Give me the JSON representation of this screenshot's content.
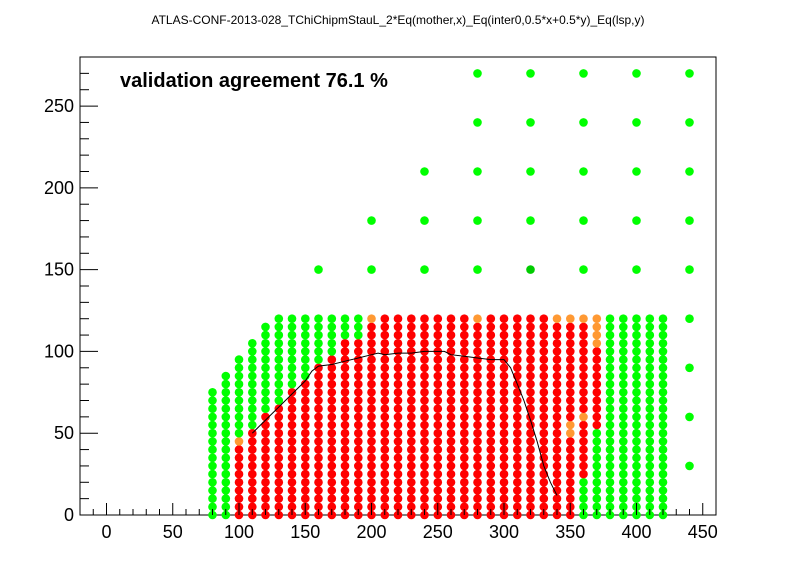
{
  "chart_data": {
    "type": "scatter",
    "title": "ATLAS-CONF-2013-028_TChiChipmStauL_2*Eq(mother,x)_Eq(inter0,0.5*x+0.5*y)_Eq(lsp,y)",
    "annotation": "validation agreement 76.1 %",
    "xlabel": "",
    "ylabel": "",
    "xlim": [
      -20,
      460
    ],
    "ylim": [
      0,
      280
    ],
    "xticks": [
      0,
      50,
      100,
      150,
      200,
      250,
      300,
      350,
      400,
      450
    ],
    "yticks": [
      0,
      50,
      100,
      150,
      200,
      250
    ],
    "grid": false,
    "colors": {
      "green": "#00ff00",
      "red": "#ff0000",
      "orange": "#ff9933",
      "darkgreen": "#00cc00",
      "line": "#000000"
    },
    "grid_points": {
      "x_start": 80,
      "x_end": 420,
      "x_step": 10,
      "y_step": 5,
      "columns_ymax": [
        [
          80,
          75
        ],
        [
          90,
          85
        ],
        [
          100,
          95
        ],
        [
          110,
          105
        ],
        [
          120,
          115
        ],
        [
          130,
          120
        ],
        [
          140,
          120
        ],
        [
          150,
          120
        ],
        [
          160,
          120
        ],
        [
          170,
          120
        ],
        [
          180,
          120
        ],
        [
          190,
          120
        ],
        [
          200,
          120
        ],
        [
          210,
          120
        ],
        [
          220,
          120
        ],
        [
          230,
          120
        ],
        [
          240,
          120
        ],
        [
          250,
          120
        ],
        [
          260,
          120
        ],
        [
          270,
          120
        ],
        [
          280,
          120
        ],
        [
          290,
          120
        ],
        [
          300,
          120
        ],
        [
          310,
          120
        ],
        [
          320,
          120
        ],
        [
          330,
          120
        ],
        [
          340,
          120
        ],
        [
          350,
          120
        ],
        [
          360,
          120
        ],
        [
          370,
          120
        ],
        [
          380,
          120
        ],
        [
          390,
          120
        ],
        [
          400,
          120
        ],
        [
          410,
          120
        ],
        [
          420,
          120
        ]
      ],
      "green_below_y": [
        [
          80,
          0
        ],
        [
          90,
          0
        ],
        [
          100,
          40
        ],
        [
          110,
          50
        ],
        [
          120,
          60
        ],
        [
          130,
          65
        ],
        [
          140,
          75
        ],
        [
          150,
          80
        ],
        [
          160,
          90
        ],
        [
          170,
          95
        ],
        [
          180,
          105
        ],
        [
          190,
          105
        ],
        [
          200,
          120
        ],
        [
          210,
          120
        ],
        [
          220,
          120
        ],
        [
          230,
          120
        ],
        [
          240,
          120
        ],
        [
          250,
          120
        ],
        [
          260,
          120
        ],
        [
          270,
          120
        ],
        [
          280,
          120
        ],
        [
          290,
          120
        ],
        [
          300,
          120
        ],
        [
          310,
          120
        ],
        [
          320,
          120
        ],
        [
          330,
          120
        ],
        [
          340,
          120
        ],
        [
          350,
          120
        ],
        [
          360,
          25
        ],
        [
          370,
          0
        ],
        [
          380,
          0
        ],
        [
          390,
          0
        ],
        [
          400,
          0
        ],
        [
          410,
          0
        ],
        [
          420,
          0
        ]
      ],
      "green_left_edge_x": [
        80,
        90
      ],
      "red_upper_y": [
        [
          100,
          40
        ],
        [
          110,
          50
        ],
        [
          120,
          60
        ],
        [
          130,
          65
        ],
        [
          140,
          75
        ],
        [
          150,
          80
        ],
        [
          160,
          90
        ],
        [
          170,
          95
        ],
        [
          180,
          105
        ],
        [
          190,
          105
        ],
        [
          200,
          115
        ],
        [
          210,
          120
        ],
        [
          220,
          120
        ],
        [
          230,
          120
        ],
        [
          240,
          120
        ],
        [
          250,
          120
        ],
        [
          260,
          120
        ],
        [
          270,
          120
        ],
        [
          280,
          115
        ],
        [
          290,
          120
        ],
        [
          300,
          120
        ],
        [
          310,
          120
        ],
        [
          320,
          120
        ],
        [
          330,
          120
        ],
        [
          340,
          120
        ],
        [
          350,
          115
        ],
        [
          360,
          115
        ],
        [
          370,
          100
        ]
      ],
      "red_start_y": [
        [
          100,
          0
        ],
        [
          110,
          0
        ],
        [
          120,
          0
        ],
        [
          130,
          0
        ],
        [
          140,
          0
        ],
        [
          150,
          0
        ],
        [
          160,
          0
        ],
        [
          170,
          0
        ],
        [
          180,
          0
        ],
        [
          190,
          0
        ],
        [
          200,
          0
        ],
        [
          210,
          0
        ],
        [
          220,
          0
        ],
        [
          230,
          0
        ],
        [
          240,
          0
        ],
        [
          250,
          0
        ],
        [
          260,
          0
        ],
        [
          270,
          0
        ],
        [
          280,
          0
        ],
        [
          290,
          0
        ],
        [
          300,
          0
        ],
        [
          310,
          0
        ],
        [
          320,
          0
        ],
        [
          330,
          0
        ],
        [
          340,
          0
        ],
        [
          350,
          0
        ],
        [
          360,
          25
        ],
        [
          370,
          55
        ]
      ],
      "orange_points": [
        [
          100,
          45
        ],
        [
          200,
          120
        ],
        [
          280,
          120
        ],
        [
          340,
          120
        ],
        [
          350,
          120
        ],
        [
          360,
          120
        ],
        [
          370,
          120
        ],
        [
          370,
          115
        ],
        [
          370,
          110
        ],
        [
          370,
          105
        ],
        [
          350,
          55
        ],
        [
          350,
          50
        ],
        [
          360,
          60
        ]
      ]
    },
    "sparse_points": [
      [
        280,
        270
      ],
      [
        320,
        270
      ],
      [
        360,
        270
      ],
      [
        400,
        270
      ],
      [
        440,
        270
      ],
      [
        280,
        240
      ],
      [
        320,
        240
      ],
      [
        360,
        240
      ],
      [
        400,
        240
      ],
      [
        440,
        240
      ],
      [
        240,
        210
      ],
      [
        280,
        210
      ],
      [
        320,
        210
      ],
      [
        360,
        210
      ],
      [
        400,
        210
      ],
      [
        440,
        210
      ],
      [
        200,
        180
      ],
      [
        240,
        180
      ],
      [
        280,
        180
      ],
      [
        320,
        180
      ],
      [
        360,
        180
      ],
      [
        400,
        180
      ],
      [
        440,
        180
      ],
      [
        160,
        150
      ],
      [
        200,
        150
      ],
      [
        240,
        150
      ],
      [
        280,
        150
      ],
      [
        360,
        150
      ],
      [
        400,
        150
      ],
      [
        440,
        150
      ],
      [
        440,
        120
      ],
      [
        440,
        90
      ],
      [
        440,
        60
      ],
      [
        440,
        30
      ]
    ],
    "sparse_darkgreen": [
      [
        320,
        150
      ]
    ],
    "curve": [
      [
        110,
        50
      ],
      [
        120,
        58
      ],
      [
        130,
        66
      ],
      [
        140,
        74
      ],
      [
        150,
        82
      ],
      [
        155,
        88
      ],
      [
        160,
        91
      ],
      [
        170,
        92
      ],
      [
        180,
        94
      ],
      [
        190,
        96
      ],
      [
        200,
        98
      ],
      [
        205,
        99
      ],
      [
        210,
        98
      ],
      [
        220,
        99
      ],
      [
        230,
        99
      ],
      [
        240,
        100
      ],
      [
        250,
        100
      ],
      [
        255,
        100
      ],
      [
        260,
        98
      ],
      [
        270,
        97
      ],
      [
        280,
        96
      ],
      [
        290,
        95
      ],
      [
        300,
        95
      ],
      [
        305,
        90
      ],
      [
        310,
        80
      ],
      [
        315,
        70
      ],
      [
        320,
        58
      ],
      [
        325,
        45
      ],
      [
        330,
        30
      ],
      [
        335,
        20
      ],
      [
        340,
        12
      ]
    ]
  }
}
